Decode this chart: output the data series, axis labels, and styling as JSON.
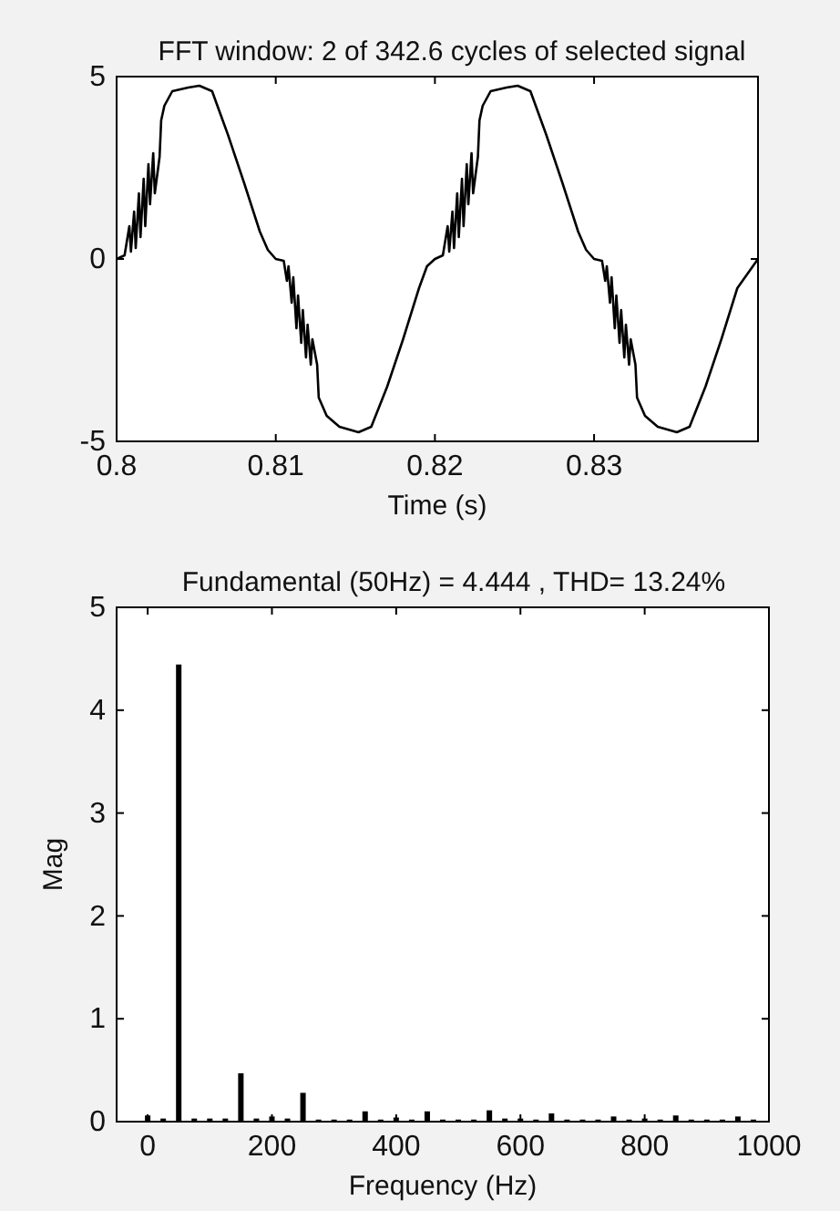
{
  "chart_data": [
    {
      "type": "line",
      "title": "FFT window: 2 of 342.6 cycles of selected signal",
      "xlabel": "Time (s)",
      "xlim": [
        0.8,
        0.8403
      ],
      "xticks": [
        0.8,
        0.81,
        0.82,
        0.83
      ],
      "ylim": [
        -5,
        5
      ],
      "yticks": [
        -5,
        0,
        5
      ],
      "marker": "none",
      "line_style": "solid",
      "series": [
        {
          "color": "#000000",
          "x": [
            0.8,
            0.8005,
            0.8008,
            0.8009,
            0.8011,
            0.8012,
            0.8014,
            0.8015,
            0.8017,
            0.8018,
            0.802,
            0.8021,
            0.8023,
            0.8024,
            0.8027,
            0.8028,
            0.803,
            0.8035,
            0.8045,
            0.8052,
            0.806,
            0.807,
            0.808,
            0.809,
            0.8095,
            0.81,
            0.8105,
            0.8107,
            0.8108,
            0.811,
            0.8111,
            0.8113,
            0.8114,
            0.8116,
            0.8117,
            0.8119,
            0.812,
            0.8122,
            0.8123,
            0.8126,
            0.8127,
            0.8132,
            0.814,
            0.8152,
            0.816,
            0.817,
            0.818,
            0.819,
            0.8195,
            0.82,
            0.8205,
            0.8208,
            0.8209,
            0.8211,
            0.8212,
            0.8214,
            0.8215,
            0.8217,
            0.8218,
            0.822,
            0.8221,
            0.8223,
            0.8224,
            0.8227,
            0.8228,
            0.823,
            0.8235,
            0.8245,
            0.8252,
            0.826,
            0.827,
            0.828,
            0.829,
            0.8295,
            0.83,
            0.8305,
            0.8307,
            0.8308,
            0.831,
            0.8311,
            0.8313,
            0.8314,
            0.8316,
            0.8317,
            0.8319,
            0.832,
            0.8322,
            0.8323,
            0.8326,
            0.8327,
            0.8332,
            0.834,
            0.8352,
            0.836,
            0.837,
            0.838,
            0.839,
            0.8403
          ],
          "values": [
            0,
            0.1,
            0.9,
            0.2,
            1.3,
            0.3,
            1.8,
            0.6,
            2.2,
            0.9,
            2.6,
            1.5,
            2.9,
            1.8,
            2.8,
            3.8,
            4.2,
            4.6,
            4.7,
            4.75,
            4.6,
            3.4,
            2.1,
            0.75,
            0.25,
            0,
            -0.05,
            -0.6,
            -0.2,
            -1.2,
            -0.5,
            -1.9,
            -1,
            -2.3,
            -1.4,
            -2.7,
            -1.8,
            -2.9,
            -2.2,
            -2.9,
            -3.8,
            -4.3,
            -4.6,
            -4.75,
            -4.6,
            -3.5,
            -2.2,
            -0.8,
            -0.2,
            0,
            0.1,
            0.9,
            0.2,
            1.3,
            0.3,
            1.8,
            0.6,
            2.2,
            0.9,
            2.6,
            1.5,
            2.9,
            1.8,
            2.8,
            3.8,
            4.2,
            4.6,
            4.7,
            4.75,
            4.6,
            3.4,
            2.1,
            0.75,
            0.25,
            0,
            -0.05,
            -0.6,
            -0.2,
            -1.2,
            -0.5,
            -1.9,
            -1,
            -2.3,
            -1.4,
            -2.7,
            -1.8,
            -2.9,
            -2.2,
            -2.9,
            -3.8,
            -4.3,
            -4.6,
            -4.75,
            -4.6,
            -3.5,
            -2.2,
            -0.8,
            0
          ]
        }
      ]
    },
    {
      "type": "bar",
      "title": "Fundamental (50Hz) = 4.444 , THD= 13.24%",
      "xlabel": "Frequency (Hz)",
      "ylabel": "Mag",
      "xlim": [
        -50,
        1000
      ],
      "xticks": [
        0,
        200,
        400,
        600,
        800,
        1000
      ],
      "ylim": [
        0,
        5
      ],
      "yticks": [
        0,
        1,
        2,
        3,
        4,
        5
      ],
      "series": [
        {
          "color": "#000000",
          "x": [
            0,
            25,
            50,
            75,
            100,
            125,
            150,
            175,
            200,
            225,
            250,
            275,
            300,
            325,
            350,
            375,
            400,
            425,
            450,
            475,
            500,
            525,
            550,
            575,
            600,
            625,
            650,
            675,
            700,
            725,
            750,
            775,
            800,
            825,
            850,
            875,
            900,
            925,
            950,
            975
          ],
          "values": [
            0.06,
            0.03,
            4.444,
            0.03,
            0.03,
            0.03,
            0.47,
            0.03,
            0.05,
            0.03,
            0.28,
            0.02,
            0.02,
            0.02,
            0.1,
            0.02,
            0.04,
            0.02,
            0.1,
            0.02,
            0.02,
            0.02,
            0.11,
            0.03,
            0.03,
            0.02,
            0.08,
            0.02,
            0.02,
            0.02,
            0.05,
            0.02,
            0.03,
            0.02,
            0.06,
            0.02,
            0.02,
            0.02,
            0.05,
            0.02
          ]
        }
      ]
    }
  ]
}
